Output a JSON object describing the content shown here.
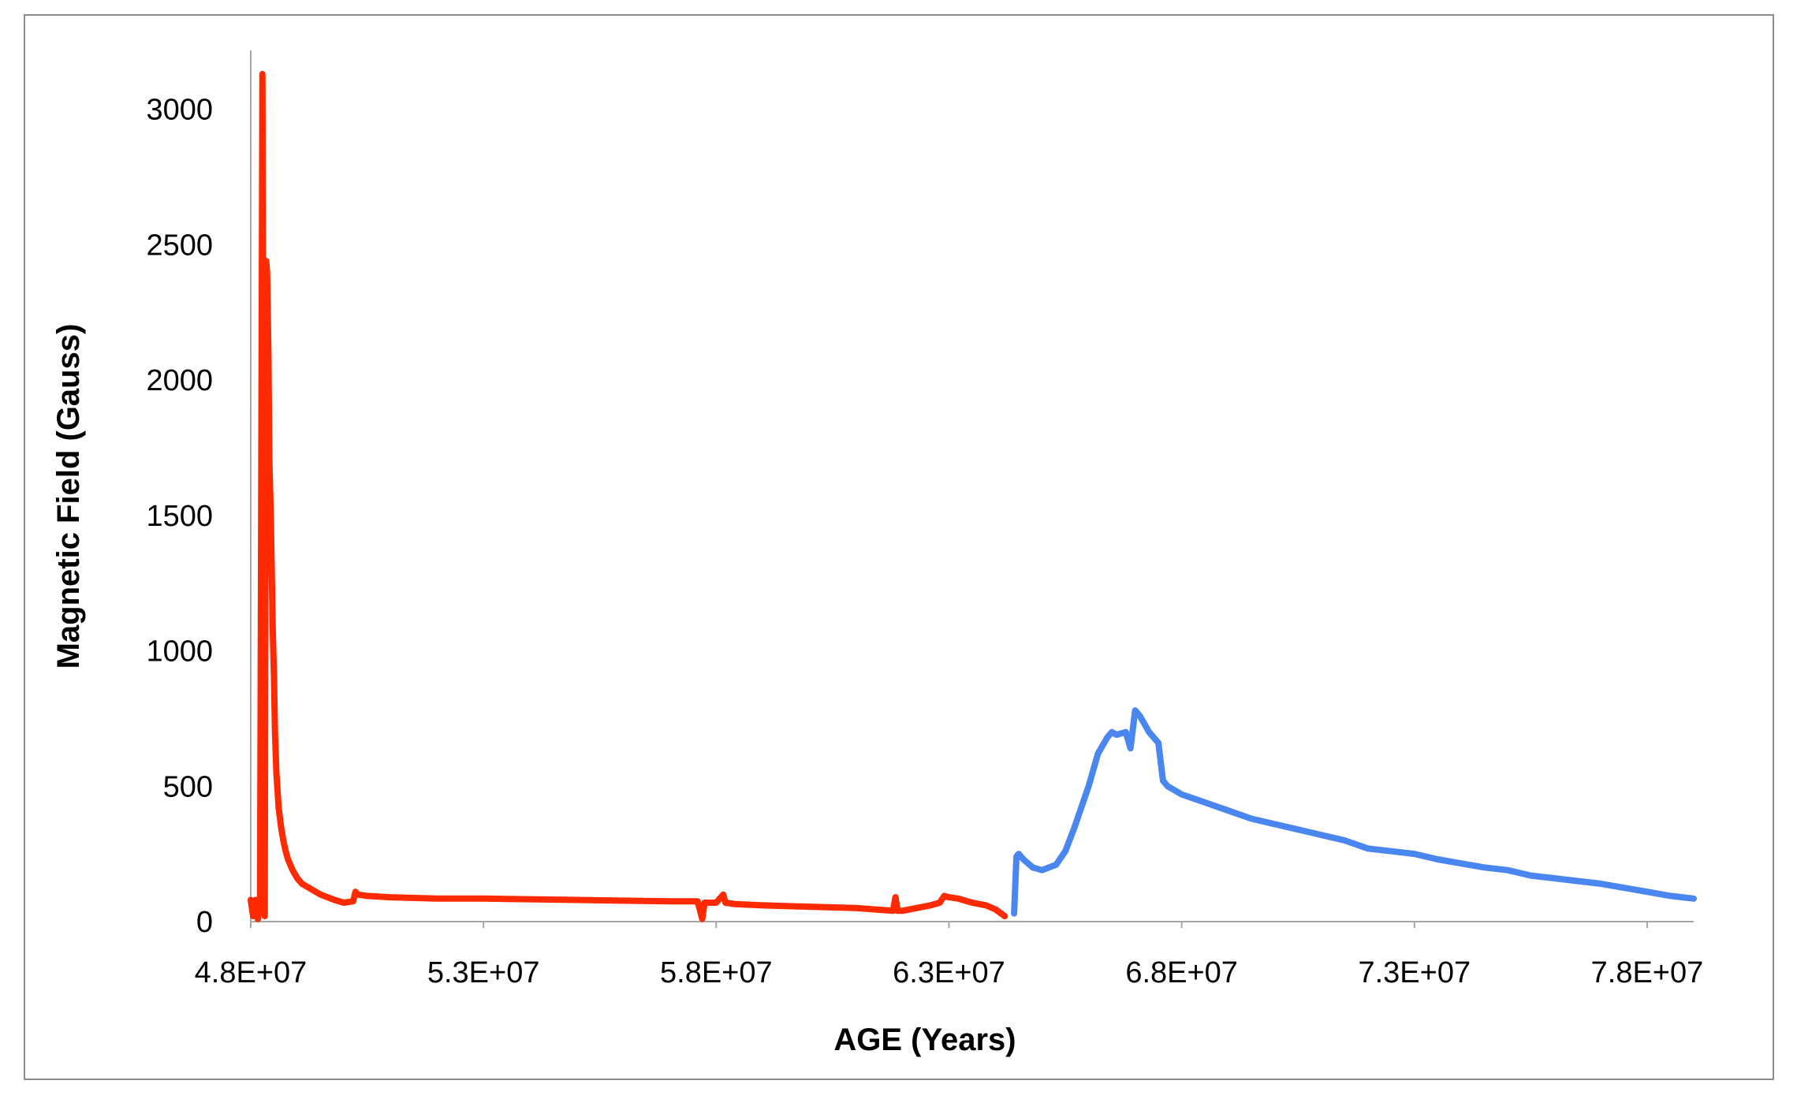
{
  "chart_data": {
    "type": "line",
    "title": "",
    "xlabel": "AGE (Years)",
    "ylabel": "Magnetic Field (Gauss)",
    "xlim": [
      48000000,
      79000000
    ],
    "ylim": [
      0,
      3200
    ],
    "x_ticks": [
      48000000,
      53000000,
      58000000,
      63000000,
      68000000,
      73000000,
      78000000
    ],
    "x_tick_labels": [
      "4.8E+07",
      "5.3E+07",
      "5.8E+07",
      "6.3E+07",
      "6.8E+07",
      "7.3E+07",
      "7.8E+07"
    ],
    "y_ticks": [
      0,
      500,
      1000,
      1500,
      2000,
      2500,
      3000
    ],
    "y_tick_labels": [
      "0",
      "500",
      "1000",
      "1500",
      "2000",
      "2500",
      "3000"
    ],
    "grid": false,
    "legend": "none",
    "series": [
      {
        "color": "#ff2a00",
        "x": [
          48000000,
          48050000,
          48100000,
          48150000,
          48200000,
          48250000,
          48300000,
          48330000,
          48350000,
          48380000,
          48400000,
          48430000,
          48450000,
          48470000,
          48500000,
          48520000,
          48550000,
          48600000,
          48650000,
          48700000,
          48750000,
          48800000,
          48900000,
          49000000,
          49100000,
          49300000,
          49500000,
          49800000,
          50000000,
          50200000,
          50250000,
          50300000,
          50500000,
          51000000,
          52000000,
          53000000,
          55000000,
          57000000,
          57600000,
          57700000,
          57750000,
          57800000,
          58000000,
          58150000,
          58200000,
          58400000,
          59000000,
          60000000,
          61000000,
          61800000,
          61850000,
          61900000,
          62000000,
          62300000,
          62600000,
          62800000,
          62900000,
          63000000,
          63200000,
          63500000,
          63800000,
          64000000,
          64200000
        ],
        "y": [
          80,
          20,
          80,
          10,
          80,
          3130,
          20,
          2440,
          2400,
          2100,
          1700,
          1500,
          1300,
          1100,
          900,
          700,
          550,
          420,
          350,
          300,
          260,
          230,
          190,
          160,
          140,
          120,
          100,
          80,
          70,
          75,
          110,
          100,
          95,
          90,
          85,
          85,
          80,
          75,
          75,
          10,
          70,
          70,
          70,
          100,
          70,
          65,
          60,
          55,
          50,
          40,
          90,
          40,
          40,
          50,
          60,
          70,
          95,
          90,
          85,
          70,
          60,
          45,
          20
        ]
      },
      {
        "color": "#4a86f0",
        "x": [
          64400000,
          64450000,
          64500000,
          64600000,
          64800000,
          65000000,
          65300000,
          65500000,
          65700000,
          66000000,
          66200000,
          66400000,
          66500000,
          66600000,
          66800000,
          66900000,
          67000000,
          67100000,
          67200000,
          67300000,
          67400000,
          67500000,
          67600000,
          67700000,
          67800000,
          68000000,
          68500000,
          69000000,
          69500000,
          70000000,
          70500000,
          71000000,
          71500000,
          72000000,
          72500000,
          73000000,
          73500000,
          74000000,
          74500000,
          75000000,
          75500000,
          76000000,
          76500000,
          77000000,
          77500000,
          78000000,
          78500000,
          79000000
        ],
        "y": [
          30,
          240,
          250,
          230,
          200,
          190,
          210,
          260,
          350,
          500,
          620,
          680,
          700,
          690,
          700,
          640,
          780,
          760,
          730,
          700,
          680,
          660,
          520,
          500,
          490,
          470,
          440,
          410,
          380,
          360,
          340,
          320,
          300,
          270,
          260,
          250,
          230,
          215,
          200,
          190,
          170,
          160,
          150,
          140,
          125,
          110,
          95,
          85
        ]
      }
    ]
  }
}
